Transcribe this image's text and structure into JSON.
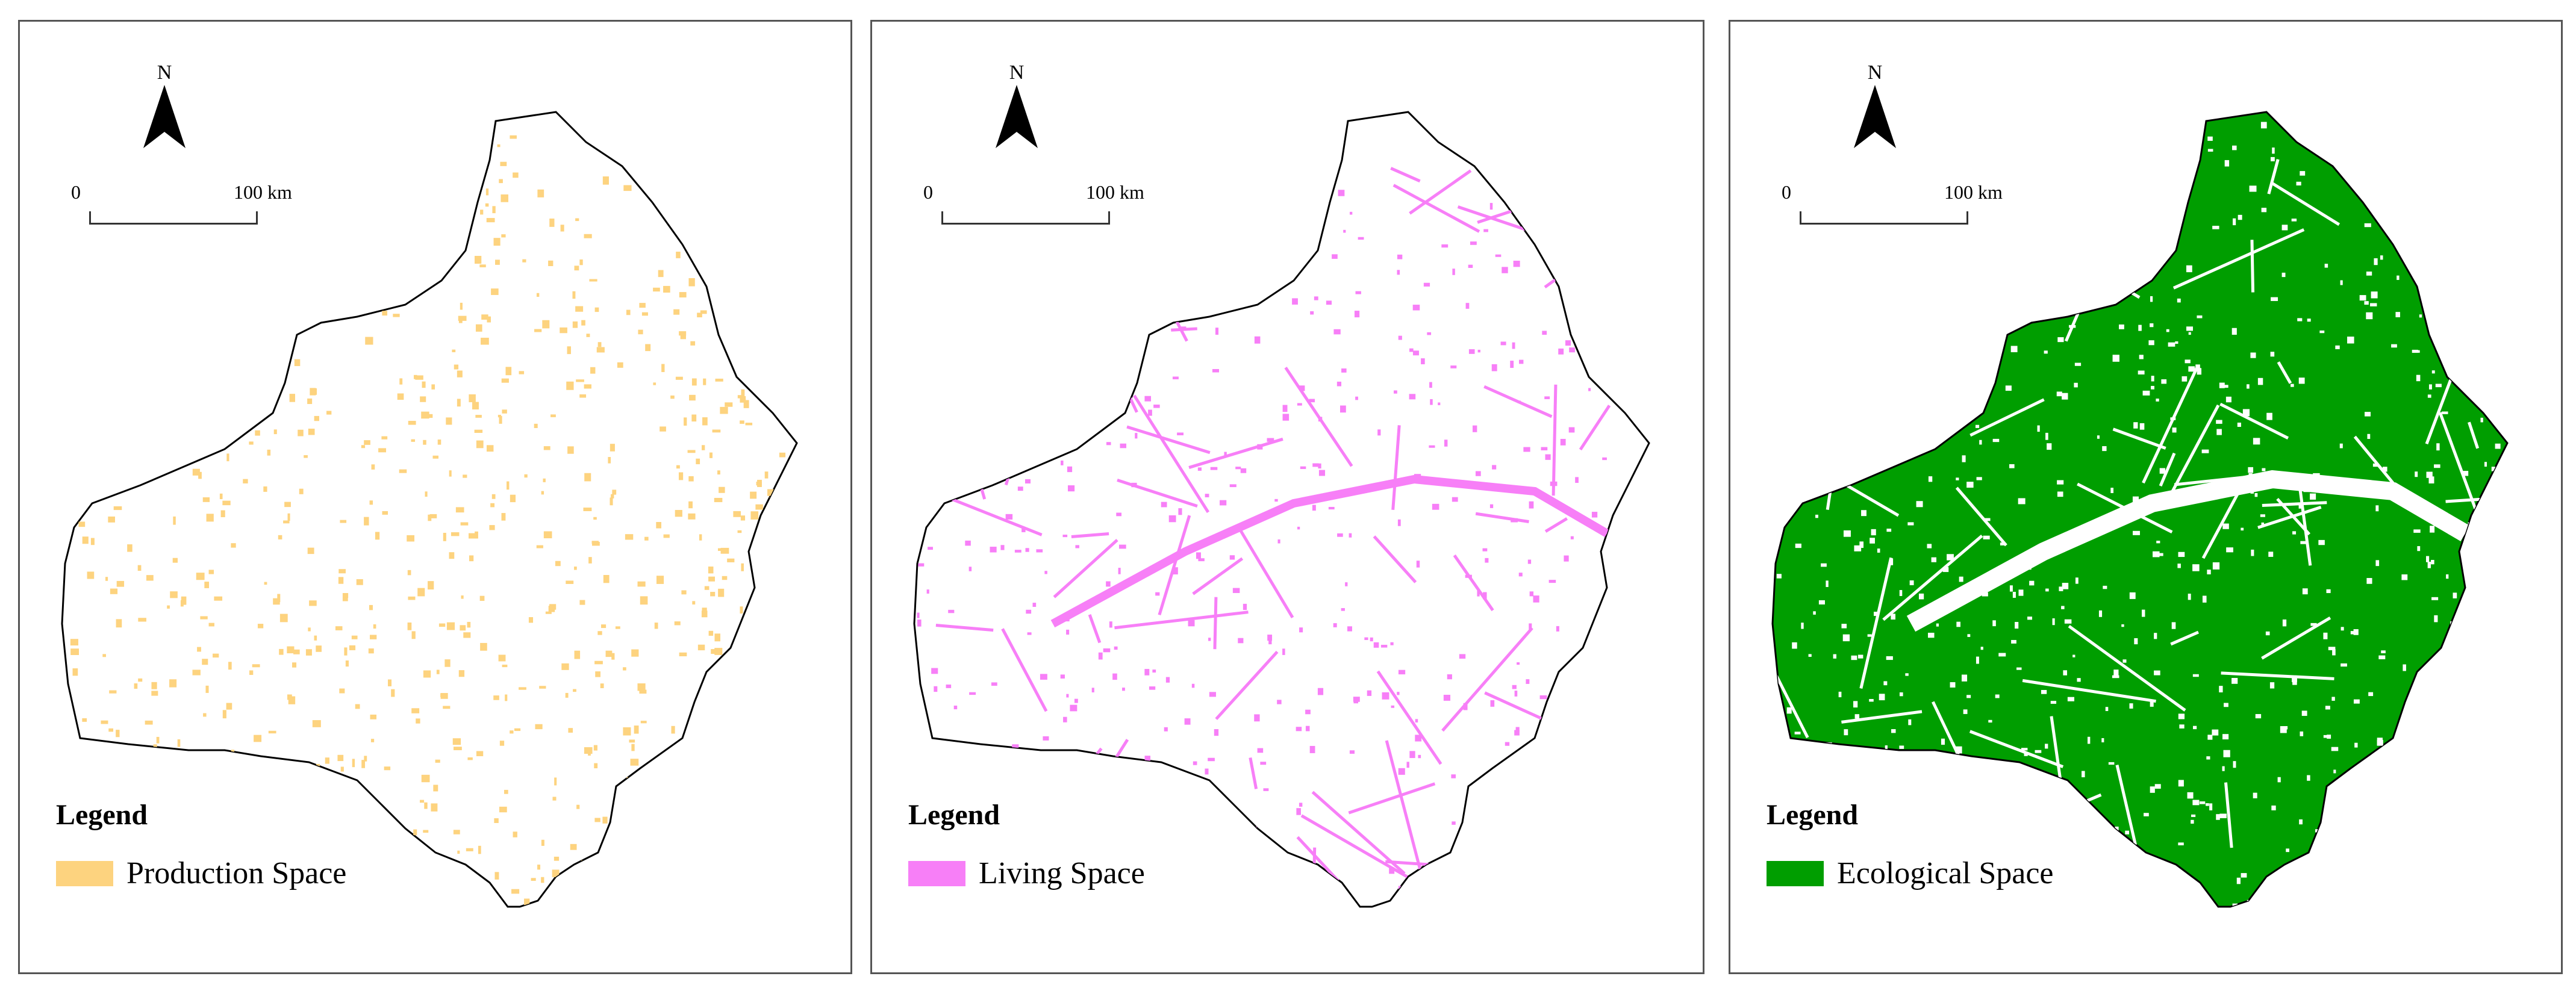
{
  "colors": {
    "production": "#fdd37f",
    "living": "#f77ff7",
    "ecological": "#009e00",
    "boundary": "#000000"
  },
  "panels": [
    {
      "north_label": "N",
      "scale": {
        "zero": "0",
        "max": "100 km"
      },
      "legend": {
        "title": "Legend",
        "label": "Production Space",
        "color": "#fdd37f"
      },
      "layer": "production"
    },
    {
      "north_label": "N",
      "scale": {
        "zero": "0",
        "max": "100 km"
      },
      "legend": {
        "title": "Legend",
        "label": "Living Space",
        "color": "#f77ff7"
      },
      "layer": "living"
    },
    {
      "north_label": "N",
      "scale": {
        "zero": "0",
        "max": "100 km"
      },
      "legend": {
        "title": "Legend",
        "label": "Ecological Space",
        "color": "#009e00"
      },
      "layer": "ecological"
    }
  ]
}
